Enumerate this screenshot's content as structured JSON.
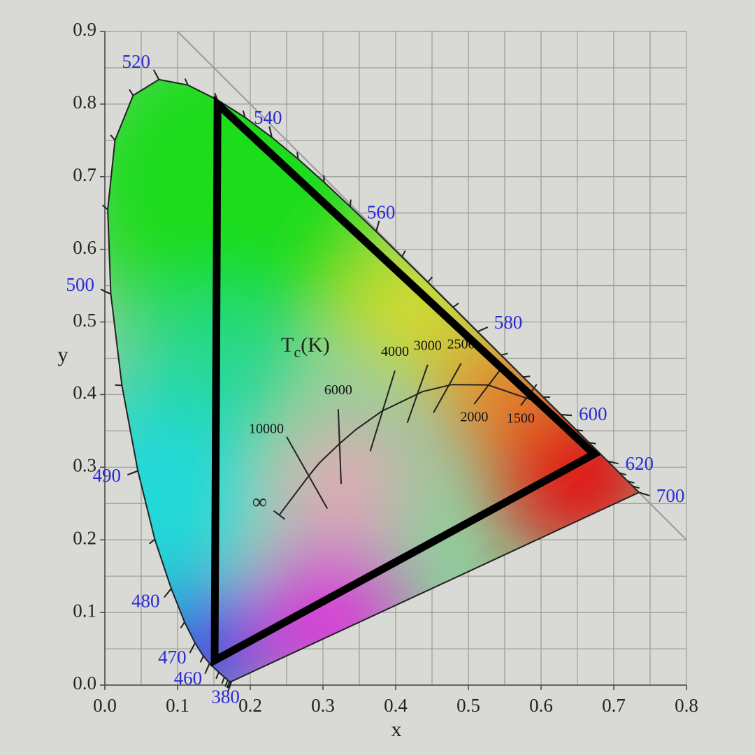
{
  "chart_data": {
    "type": "chromaticity",
    "xlabel": "x",
    "ylabel": "y",
    "xlim": [
      0,
      0.8
    ],
    "ylim": [
      0,
      0.9
    ],
    "xticks": [
      {
        "value": 0,
        "label": "0.0"
      },
      0.1,
      0.2,
      0.3,
      0.4,
      0.5,
      0.6,
      0.7,
      0.8
    ],
    "yticks": [
      {
        "value": 0,
        "label": "0.0"
      },
      0.1,
      0.2,
      0.3,
      0.4,
      0.5,
      0.6,
      0.7,
      0.8,
      0.9
    ],
    "xminorticks": [
      0.05,
      0.15,
      0.25,
      0.35,
      0.45,
      0.55,
      0.65,
      0.75
    ],
    "yminorticks": [
      0.05,
      0.15,
      0.25,
      0.35,
      0.45,
      0.55,
      0.65,
      0.75,
      0.85
    ],
    "grid": true,
    "spectral_locus": {
      "x": [
        0.1741,
        0.1733,
        0.1714,
        0.1689,
        0.1644,
        0.1566,
        0.144,
        0.1355,
        0.1241,
        0.1096,
        0.0913,
        0.0687,
        0.0454,
        0.0235,
        0.0082,
        0.0039,
        0.0139,
        0.0389,
        0.0743,
        0.1142,
        0.1547,
        0.1929,
        0.2296,
        0.2658,
        0.3016,
        0.3373,
        0.3731,
        0.4087,
        0.4441,
        0.4788,
        0.5125,
        0.5448,
        0.5752,
        0.6029,
        0.627,
        0.6482,
        0.6658,
        0.6915,
        0.7079,
        0.719,
        0.726,
        0.7347
      ],
      "y": [
        0.005,
        0.0048,
        0.0051,
        0.0069,
        0.0109,
        0.0177,
        0.0297,
        0.0399,
        0.0578,
        0.0868,
        0.1327,
        0.2007,
        0.295,
        0.4127,
        0.5384,
        0.6548,
        0.7502,
        0.812,
        0.8338,
        0.8262,
        0.8059,
        0.7816,
        0.7543,
        0.7243,
        0.6923,
        0.6589,
        0.6245,
        0.5896,
        0.5547,
        0.5202,
        0.4866,
        0.4544,
        0.4242,
        0.3965,
        0.3725,
        0.3514,
        0.334,
        0.3083,
        0.292,
        0.2809,
        0.274,
        0.2653
      ]
    },
    "wavelength_labels": [
      {
        "wavelength": 380,
        "x": 0.1741,
        "y": 0.005
      },
      {
        "wavelength": 460,
        "x": 0.144,
        "y": 0.0297
      },
      {
        "wavelength": 470,
        "x": 0.1241,
        "y": 0.0578
      },
      {
        "wavelength": 480,
        "x": 0.0913,
        "y": 0.1327
      },
      {
        "wavelength": 490,
        "x": 0.0454,
        "y": 0.295
      },
      {
        "wavelength": 500,
        "x": 0.0082,
        "y": 0.5384
      },
      {
        "wavelength": 520,
        "x": 0.0743,
        "y": 0.8338
      },
      {
        "wavelength": 540,
        "x": 0.2296,
        "y": 0.7543
      },
      {
        "wavelength": 560,
        "x": 0.3731,
        "y": 0.6245
      },
      {
        "wavelength": 580,
        "x": 0.5125,
        "y": 0.4866
      },
      {
        "wavelength": 600,
        "x": 0.627,
        "y": 0.3725
      },
      {
        "wavelength": 620,
        "x": 0.6915,
        "y": 0.3083
      },
      {
        "wavelength": 700,
        "x": 0.7347,
        "y": 0.2653
      }
    ],
    "reference_line": {
      "x": [
        0.1,
        0.8
      ],
      "y": [
        0.9,
        0.2
      ]
    },
    "gamut": {
      "x": [
        0.155,
        0.673,
        0.151
      ],
      "y": [
        0.8,
        0.318,
        0.034
      ]
    },
    "planckian_locus": {
      "x": [
        0.2399,
        0.2807,
        0.295,
        0.3221,
        0.3451,
        0.3805,
        0.4369,
        0.477,
        0.5267,
        0.5857,
        0.61
      ],
      "y": [
        0.2342,
        0.2883,
        0.3059,
        0.3318,
        0.3516,
        0.3768,
        0.4041,
        0.4137,
        0.4133,
        0.3931,
        0.38
      ]
    },
    "tc_label": [
      "T",
      "c",
      "(K)"
    ],
    "infinity_label": "∞",
    "isotherms": [
      {
        "temperature": 10000,
        "x": [
          0.25,
          0.306
        ],
        "y": [
          0.342,
          0.243
        ]
      },
      {
        "temperature": 6000,
        "x": [
          0.321,
          0.325
        ],
        "y": [
          0.38,
          0.277
        ]
      },
      {
        "temperature": 4000,
        "x": [
          0.399,
          0.365
        ],
        "y": [
          0.433,
          0.322
        ]
      },
      {
        "temperature": 3000,
        "x": [
          0.444,
          0.416
        ],
        "y": [
          0.441,
          0.361
        ]
      },
      {
        "temperature": 2500,
        "x": [
          0.49,
          0.452
        ],
        "y": [
          0.443,
          0.375
        ]
      },
      {
        "temperature": 2000,
        "x": [
          0.543,
          0.508
        ],
        "y": [
          0.433,
          0.387
        ]
      },
      {
        "temperature": 1500,
        "x": [
          0.594,
          0.572
        ],
        "y": [
          0.414,
          0.385
        ]
      }
    ]
  }
}
